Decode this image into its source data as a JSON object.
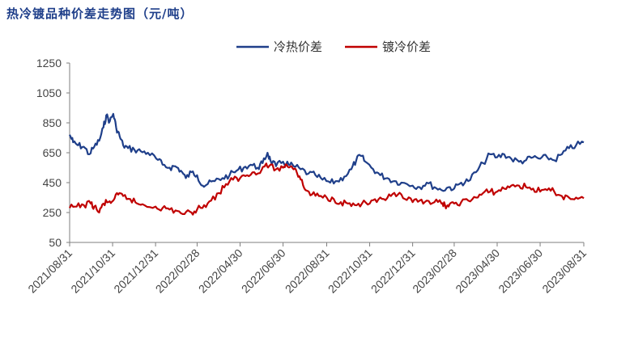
{
  "chart_data": {
    "type": "line",
    "title": "热冷镀品种价差走势图（元/吨）",
    "xlabel": "",
    "ylabel": "",
    "ylim": [
      50,
      1250
    ],
    "yticks": [
      50,
      250,
      450,
      650,
      850,
      1050,
      1250
    ],
    "xlim": [
      "2021/08/31",
      "2023/08/31"
    ],
    "x_tick_labels": [
      "2021/08/31",
      "2021/10/31",
      "2021/12/31",
      "2022/02/28",
      "2022/04/30",
      "2022/06/30",
      "2022/08/31",
      "2022/10/31",
      "2022/12/31",
      "2023/02/28",
      "2023/04/30",
      "2023/06/30",
      "2023/08/31"
    ],
    "legend_position": "top-center",
    "grid": false,
    "series": [
      {
        "name": "冷热价差",
        "color": "#1f3f8a",
        "points": [
          [
            "2021/08/31",
            770
          ],
          [
            "2021/09/05",
            720
          ],
          [
            "2021/09/12",
            700
          ],
          [
            "2021/09/20",
            690
          ],
          [
            "2021/09/28",
            640
          ],
          [
            "2021/10/05",
            690
          ],
          [
            "2021/10/12",
            730
          ],
          [
            "2021/10/18",
            820
          ],
          [
            "2021/10/22",
            900
          ],
          [
            "2021/10/27",
            860
          ],
          [
            "2021/11/01",
            910
          ],
          [
            "2021/11/05",
            820
          ],
          [
            "2021/11/10",
            760
          ],
          [
            "2021/11/15",
            700
          ],
          [
            "2021/11/22",
            680
          ],
          [
            "2021/12/01",
            670
          ],
          [
            "2021/12/10",
            660
          ],
          [
            "2021/12/20",
            650
          ],
          [
            "2022/01/01",
            610
          ],
          [
            "2022/01/10",
            570
          ],
          [
            "2022/01/20",
            550
          ],
          [
            "2022/01/28",
            560
          ],
          [
            "2022/02/05",
            530
          ],
          [
            "2022/02/12",
            480
          ],
          [
            "2022/02/20",
            520
          ],
          [
            "2022/02/28",
            500
          ],
          [
            "2022/03/08",
            430
          ],
          [
            "2022/03/15",
            440
          ],
          [
            "2022/03/25",
            460
          ],
          [
            "2022/04/05",
            480
          ],
          [
            "2022/04/15",
            500
          ],
          [
            "2022/04/25",
            530
          ],
          [
            "2022/05/05",
            550
          ],
          [
            "2022/05/15",
            570
          ],
          [
            "2022/05/25",
            550
          ],
          [
            "2022/06/01",
            580
          ],
          [
            "2022/06/08",
            650
          ],
          [
            "2022/06/12",
            600
          ],
          [
            "2022/06/20",
            560
          ],
          [
            "2022/06/30",
            590
          ],
          [
            "2022/07/08",
            570
          ],
          [
            "2022/07/15",
            560
          ],
          [
            "2022/07/25",
            540
          ],
          [
            "2022/08/05",
            510
          ],
          [
            "2022/08/15",
            500
          ],
          [
            "2022/08/25",
            470
          ],
          [
            "2022/09/05",
            450
          ],
          [
            "2022/09/15",
            460
          ],
          [
            "2022/09/25",
            490
          ],
          [
            "2022/10/05",
            540
          ],
          [
            "2022/10/12",
            600
          ],
          [
            "2022/10/18",
            630
          ],
          [
            "2022/10/25",
            590
          ],
          [
            "2022/11/05",
            540
          ],
          [
            "2022/11/15",
            500
          ],
          [
            "2022/11/25",
            480
          ],
          [
            "2022/12/05",
            460
          ],
          [
            "2022/12/15",
            450
          ],
          [
            "2022/12/31",
            430
          ],
          [
            "2023/01/10",
            420
          ],
          [
            "2023/01/20",
            450
          ],
          [
            "2023/01/31",
            420
          ],
          [
            "2023/02/10",
            400
          ],
          [
            "2023/02/20",
            420
          ],
          [
            "2023/02/28",
            410
          ],
          [
            "2023/03/10",
            450
          ],
          [
            "2023/03/20",
            460
          ],
          [
            "2023/03/31",
            520
          ],
          [
            "2023/04/10",
            580
          ],
          [
            "2023/04/20",
            640
          ],
          [
            "2023/04/30",
            620
          ],
          [
            "2023/05/10",
            640
          ],
          [
            "2023/05/20",
            610
          ],
          [
            "2023/05/31",
            590
          ],
          [
            "2023/06/10",
            600
          ],
          [
            "2023/06/20",
            620
          ],
          [
            "2023/06/30",
            610
          ],
          [
            "2023/07/10",
            620
          ],
          [
            "2023/07/20",
            600
          ],
          [
            "2023/07/31",
            640
          ],
          [
            "2023/08/10",
            680
          ],
          [
            "2023/08/20",
            700
          ],
          [
            "2023/08/31",
            720
          ]
        ]
      },
      {
        "name": "镀冷价差",
        "color": "#c00000",
        "points": [
          [
            "2021/08/31",
            280
          ],
          [
            "2021/09/10",
            290
          ],
          [
            "2021/09/20",
            300
          ],
          [
            "2021/09/30",
            310
          ],
          [
            "2021/10/05",
            290
          ],
          [
            "2021/10/12",
            250
          ],
          [
            "2021/10/18",
            310
          ],
          [
            "2021/10/25",
            320
          ],
          [
            "2021/11/01",
            330
          ],
          [
            "2021/11/08",
            370
          ],
          [
            "2021/11/15",
            360
          ],
          [
            "2021/11/25",
            340
          ],
          [
            "2021/12/05",
            310
          ],
          [
            "2021/12/15",
            300
          ],
          [
            "2021/12/31",
            290
          ],
          [
            "2022/01/10",
            280
          ],
          [
            "2022/01/20",
            270
          ],
          [
            "2022/01/31",
            260
          ],
          [
            "2022/02/10",
            240
          ],
          [
            "2022/02/20",
            250
          ],
          [
            "2022/02/28",
            270
          ],
          [
            "2022/03/10",
            300
          ],
          [
            "2022/03/20",
            330
          ],
          [
            "2022/03/31",
            380
          ],
          [
            "2022/04/10",
            440
          ],
          [
            "2022/04/20",
            470
          ],
          [
            "2022/04/30",
            480
          ],
          [
            "2022/05/10",
            500
          ],
          [
            "2022/05/20",
            520
          ],
          [
            "2022/05/31",
            540
          ],
          [
            "2022/06/05",
            570
          ],
          [
            "2022/06/10",
            560
          ],
          [
            "2022/06/20",
            540
          ],
          [
            "2022/06/30",
            550
          ],
          [
            "2022/07/05",
            570
          ],
          [
            "2022/07/12",
            560
          ],
          [
            "2022/07/18",
            540
          ],
          [
            "2022/07/25",
            470
          ],
          [
            "2022/08/01",
            400
          ],
          [
            "2022/08/10",
            370
          ],
          [
            "2022/08/20",
            360
          ],
          [
            "2022/08/31",
            350
          ],
          [
            "2022/09/10",
            340
          ],
          [
            "2022/09/20",
            320
          ],
          [
            "2022/09/30",
            310
          ],
          [
            "2022/10/10",
            300
          ],
          [
            "2022/10/20",
            310
          ],
          [
            "2022/10/31",
            310
          ],
          [
            "2022/11/10",
            320
          ],
          [
            "2022/11/20",
            340
          ],
          [
            "2022/11/30",
            360
          ],
          [
            "2022/12/10",
            370
          ],
          [
            "2022/12/20",
            340
          ],
          [
            "2022/12/31",
            320
          ],
          [
            "2023/01/10",
            330
          ],
          [
            "2023/01/20",
            330
          ],
          [
            "2023/01/31",
            320
          ],
          [
            "2023/02/10",
            310
          ],
          [
            "2023/02/15",
            300
          ],
          [
            "2023/02/20",
            290
          ],
          [
            "2023/02/28",
            310
          ],
          [
            "2023/03/10",
            320
          ],
          [
            "2023/03/20",
            330
          ],
          [
            "2023/03/31",
            350
          ],
          [
            "2023/04/10",
            380
          ],
          [
            "2023/04/20",
            390
          ],
          [
            "2023/04/30",
            390
          ],
          [
            "2023/05/10",
            410
          ],
          [
            "2023/05/20",
            430
          ],
          [
            "2023/05/31",
            430
          ],
          [
            "2023/06/10",
            420
          ],
          [
            "2023/06/20",
            410
          ],
          [
            "2023/06/30",
            390
          ],
          [
            "2023/07/10",
            400
          ],
          [
            "2023/07/20",
            390
          ],
          [
            "2023/07/31",
            360
          ],
          [
            "2023/08/10",
            350
          ],
          [
            "2023/08/20",
            350
          ],
          [
            "2023/08/31",
            345
          ]
        ]
      }
    ]
  }
}
